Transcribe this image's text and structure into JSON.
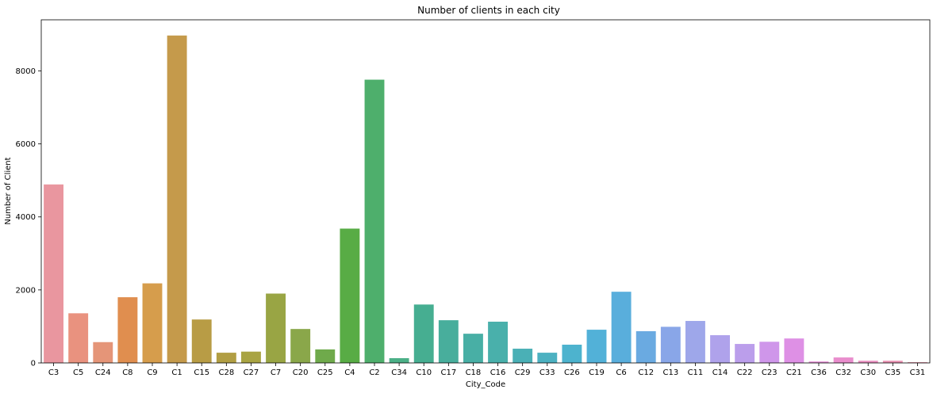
{
  "chart_data": {
    "type": "bar",
    "title": "Number of clients in each city",
    "xlabel": "City_Code",
    "ylabel": "Number of Client",
    "ylim": [
      0,
      9400
    ],
    "yticks": [
      0,
      2000,
      4000,
      6000,
      8000
    ],
    "grid": false,
    "legend": "none",
    "categories": [
      "C3",
      "C5",
      "C24",
      "C8",
      "C9",
      "C1",
      "C15",
      "C28",
      "C27",
      "C7",
      "C20",
      "C25",
      "C4",
      "C2",
      "C34",
      "C10",
      "C17",
      "C18",
      "C16",
      "C29",
      "C33",
      "C26",
      "C19",
      "C6",
      "C12",
      "C13",
      "C11",
      "C14",
      "C22",
      "C23",
      "C21",
      "C36",
      "C32",
      "C30",
      "C35",
      "C31"
    ],
    "values": [
      4890,
      1360,
      570,
      1800,
      2180,
      8970,
      1190,
      280,
      310,
      1900,
      930,
      370,
      3680,
      7760,
      130,
      1600,
      1170,
      800,
      1130,
      390,
      280,
      500,
      910,
      1950,
      870,
      990,
      1150,
      760,
      520,
      580,
      670,
      40,
      150,
      60,
      60,
      20
    ],
    "colors": [
      "#e9969f",
      "#e9927f",
      "#e59578",
      "#e08e4f",
      "#d69d4c",
      "#c59a4b",
      "#b89c45",
      "#b19e43",
      "#a9a443",
      "#99a544",
      "#8aa74a",
      "#6faa4b",
      "#58ac45",
      "#4eaf6c",
      "#4bb087",
      "#46ae91",
      "#48ae9c",
      "#48afa5",
      "#49b0ab",
      "#4ab0b6",
      "#4cb1c1",
      "#4db3ce",
      "#52b1d8",
      "#59aedc",
      "#6aaae1",
      "#89a6e8",
      "#9ea7ea",
      "#afa2eb",
      "#bb9eeb",
      "#cf96ea",
      "#de90e5",
      "#e68fd8",
      "#e98dcd",
      "#e98fc0",
      "#e991b2",
      "#e993a4"
    ]
  }
}
